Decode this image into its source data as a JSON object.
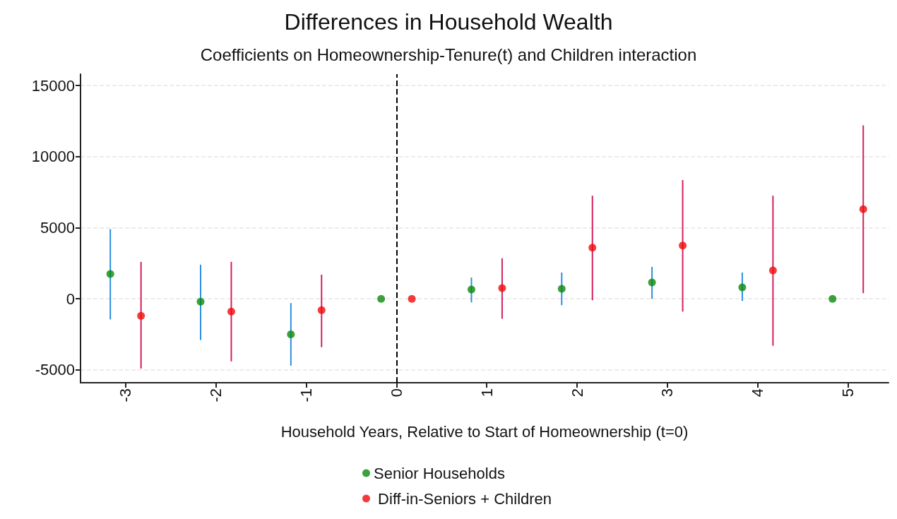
{
  "chart_data": {
    "type": "scatter",
    "title": "Differences in Household Wealth",
    "subtitle": "Coefficients on Homeownership-Tenure(t) and Children interaction",
    "xlabel": "Household Years, Relative to Start of Homeownership (t=0)",
    "xlim": [
      -3.5,
      5.45
    ],
    "xticks": [
      -3,
      -2,
      -1,
      0,
      1,
      2,
      3,
      4,
      5
    ],
    "ylim": [
      -5900,
      15800
    ],
    "yticks": [
      -5000,
      0,
      5000,
      10000,
      15000
    ],
    "grid": "y",
    "legend": "bottom",
    "marker": "circle",
    "ref_lines": [
      {
        "axis": "x",
        "value": 0,
        "color": "#000000",
        "line_style": "dashed"
      }
    ],
    "series": [
      {
        "name": "Senior Households",
        "color": "#0a8a0a",
        "x": [
          -3.17,
          -2.17,
          -1.17,
          -0.17,
          0.83,
          1.83,
          2.83,
          3.83,
          4.83
        ],
        "values": [
          1750,
          -200,
          -2500,
          0,
          650,
          700,
          1150,
          800,
          0
        ],
        "errors": [
          [
            -1450,
            4900
          ],
          [
            -2900,
            2400
          ],
          [
            -4700,
            -300
          ],
          null,
          [
            -250,
            1500
          ],
          [
            -450,
            1850
          ],
          [
            0,
            2250
          ],
          [
            -150,
            1850
          ],
          null
        ]
      },
      {
        "name": " Diff-in-Seniors + Children",
        "color": "#f00a0a",
        "x": [
          -2.83,
          -1.83,
          -0.83,
          0.17,
          1.17,
          2.17,
          3.17,
          4.17,
          5.17
        ],
        "values": [
          -1200,
          -900,
          -800,
          0,
          750,
          3600,
          3750,
          2000,
          6300
        ],
        "errors": [
          [
            -4900,
            2600
          ],
          [
            -4400,
            2600
          ],
          [
            -3400,
            1700
          ],
          null,
          [
            -1400,
            2850
          ],
          [
            -100,
            7250
          ],
          [
            -900,
            8350
          ],
          [
            -3300,
            7250
          ],
          [
            400,
            12200
          ]
        ]
      }
    ]
  }
}
